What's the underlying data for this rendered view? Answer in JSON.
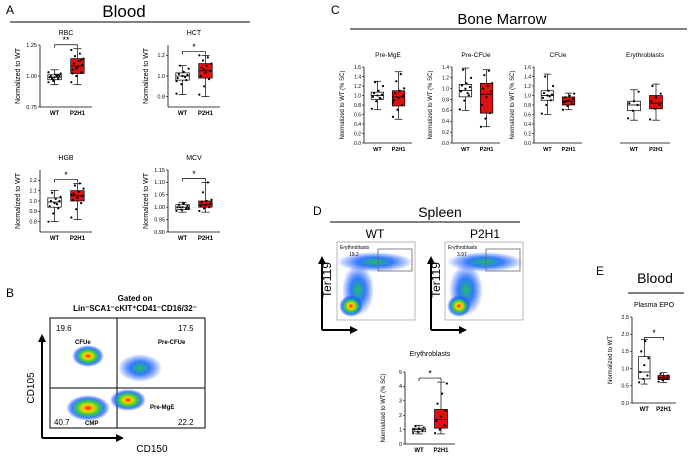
{
  "colors": {
    "wt_fill": "#ffffff",
    "p2h1_fill": "#e01010",
    "axis": "#000000",
    "dot": "#000000",
    "gate": "#7a7a7a"
  },
  "panels": {
    "A": {
      "letter": "A",
      "title": "Blood"
    },
    "B": {
      "letter": "B",
      "title_line1": "Gated on",
      "title_line2": "Lin⁻SCA1⁻cKIT⁺CD41⁻CD16/32⁻",
      "xlabel": "CD150",
      "ylabel": "CD105",
      "quadrants": {
        "tl_value": "19.6",
        "tl_label": "CFUe",
        "tr_value": "17.5",
        "tr_label": "Pre-CFUe",
        "bl_value": "40.7",
        "bl_label": "CMP",
        "br_value": "22.2",
        "br_label": "Pre-MgE"
      }
    },
    "C": {
      "letter": "C",
      "title": "Bone Marrow"
    },
    "D": {
      "letter": "D",
      "title": "Spleen",
      "left_label": "WT",
      "right_label": "P2H1",
      "ylabel": "Ter119",
      "gate_label": "Erythroblasts",
      "gate_wt": "19.2",
      "gate_p2h1": "3.97"
    },
    "E": {
      "letter": "E",
      "title": "Blood"
    }
  },
  "chart_data": [
    {
      "id": "rbc",
      "type": "box",
      "title": "RBC",
      "ylabel": "Normalized to WT",
      "categories": [
        "WT",
        "P2H1"
      ],
      "ylim": [
        0.75,
        1.25
      ],
      "yticks": [
        "0.75",
        "1.00",
        "1.25"
      ],
      "sig": "**",
      "series": [
        {
          "name": "WT",
          "min": 0.93,
          "q1": 0.97,
          "median": 0.99,
          "q3": 1.01,
          "max": 1.05,
          "points": [
            0.95,
            0.97,
            0.98,
            0.99,
            0.99,
            1.0,
            1.0,
            1.01,
            1.02,
            0.98,
            1.0,
            1.03,
            0.96,
            1.01
          ]
        },
        {
          "name": "P2H1",
          "min": 0.93,
          "q1": 1.02,
          "median": 1.08,
          "q3": 1.14,
          "max": 1.22,
          "points": [
            0.95,
            1.0,
            1.03,
            1.05,
            1.07,
            1.09,
            1.1,
            1.12,
            1.14,
            1.16,
            1.18,
            1.21,
            1.06,
            1.13,
            1.02
          ]
        }
      ]
    },
    {
      "id": "hct",
      "type": "box",
      "title": "HCT",
      "ylabel": "Normalized to WT",
      "categories": [
        "WT",
        "P2H1"
      ],
      "ylim": [
        0.7,
        1.3
      ],
      "yticks": [
        "0.8",
        "1.0",
        "1.2"
      ],
      "sig": "*",
      "series": [
        {
          "name": "WT",
          "min": 0.82,
          "q1": 0.96,
          "median": 1.0,
          "q3": 1.03,
          "max": 1.1,
          "points": [
            0.83,
            0.92,
            0.96,
            0.98,
            1.0,
            1.01,
            1.02,
            1.04,
            1.07,
            1.1,
            0.99,
            0.95
          ]
        },
        {
          "name": "P2H1",
          "min": 0.8,
          "q1": 0.98,
          "median": 1.05,
          "q3": 1.12,
          "max": 1.2,
          "points": [
            0.82,
            0.9,
            0.97,
            1.0,
            1.03,
            1.05,
            1.08,
            1.1,
            1.12,
            1.15,
            1.18,
            1.2,
            1.06
          ]
        }
      ]
    },
    {
      "id": "hgb",
      "type": "box",
      "title": "HGB",
      "ylabel": "Normalized to WT",
      "categories": [
        "WT",
        "P2H1"
      ],
      "ylim": [
        0.7,
        1.3
      ],
      "yticks": [
        "0.8",
        "0.9",
        "1.0",
        "1.1",
        "1.2"
      ],
      "sig": "*",
      "series": [
        {
          "name": "WT",
          "min": 0.8,
          "q1": 0.94,
          "median": 0.99,
          "q3": 1.03,
          "max": 1.1,
          "points": [
            0.8,
            0.88,
            0.93,
            0.95,
            0.98,
            1.0,
            1.0,
            1.02,
            1.04,
            1.08,
            0.97
          ]
        },
        {
          "name": "P2H1",
          "min": 0.82,
          "q1": 1.0,
          "median": 1.05,
          "q3": 1.1,
          "max": 1.17,
          "points": [
            0.84,
            0.92,
            0.98,
            1.01,
            1.03,
            1.05,
            1.07,
            1.09,
            1.12,
            1.15,
            1.17,
            1.06
          ]
        }
      ]
    },
    {
      "id": "mcv",
      "type": "box",
      "title": "MCV",
      "ylabel": "Normalized to WT",
      "categories": [
        "WT",
        "P2H1"
      ],
      "ylim": [
        0.9,
        1.15
      ],
      "yticks": [
        "0.90",
        "0.95",
        "1.00",
        "1.05",
        "1.10",
        "1.15"
      ],
      "sig": "*",
      "series": [
        {
          "name": "WT",
          "min": 0.98,
          "q1": 0.99,
          "median": 1.0,
          "q3": 1.01,
          "max": 1.02,
          "points": [
            0.985,
            0.99,
            0.995,
            1.0,
            1.0,
            1.005,
            1.01,
            1.015,
            0.995,
            1.0
          ]
        },
        {
          "name": "P2H1",
          "min": 0.98,
          "q1": 1.0,
          "median": 1.01,
          "q3": 1.025,
          "max": 1.1,
          "points": [
            0.985,
            0.995,
            1.0,
            1.005,
            1.01,
            1.015,
            1.02,
            1.025,
            1.03,
            1.06,
            1.1
          ]
        }
      ]
    },
    {
      "id": "premge",
      "type": "box",
      "title": "Pre-MgE",
      "ylabel": "Normalized to WT (% SC)",
      "categories": [
        "WT",
        "P2H1"
      ],
      "ylim": [
        0,
        1.6
      ],
      "yticks": [
        "0.0",
        "0.2",
        "0.4",
        "0.6",
        "0.8",
        "1.0",
        "1.2",
        "1.4",
        "1.6"
      ],
      "series": [
        {
          "name": "WT",
          "min": 0.7,
          "q1": 0.92,
          "median": 1.0,
          "q3": 1.07,
          "max": 1.3,
          "points": [
            0.72,
            0.88,
            0.93,
            0.97,
            1.0,
            1.02,
            1.05,
            1.1,
            1.2,
            1.28,
            0.95
          ]
        },
        {
          "name": "P2H1",
          "min": 0.5,
          "q1": 0.78,
          "median": 0.97,
          "q3": 1.1,
          "max": 1.5,
          "points": [
            0.55,
            0.7,
            0.8,
            0.9,
            0.95,
            1.0,
            1.05,
            1.1,
            1.15,
            1.3,
            1.45,
            0.85
          ]
        }
      ]
    },
    {
      "id": "precfue",
      "type": "box",
      "title": "Pre-CFUe",
      "ylabel": "Normalized to WT (% SC)",
      "categories": [
        "WT",
        "P2H1"
      ],
      "ylim": [
        0,
        1.4
      ],
      "yticks": [
        "0.0",
        "0.2",
        "0.4",
        "0.6",
        "0.8",
        "1.0",
        "1.2",
        "1.4"
      ],
      "series": [
        {
          "name": "WT",
          "min": 0.6,
          "q1": 0.85,
          "median": 0.97,
          "q3": 1.08,
          "max": 1.38,
          "points": [
            0.62,
            0.78,
            0.88,
            0.95,
            1.0,
            1.03,
            1.06,
            1.1,
            1.2,
            1.35,
            0.92
          ]
        },
        {
          "name": "P2H1",
          "min": 0.3,
          "q1": 0.55,
          "median": 0.9,
          "q3": 1.1,
          "max": 1.35,
          "points": [
            0.3,
            0.45,
            0.55,
            0.7,
            0.85,
            0.95,
            1.0,
            1.05,
            1.1,
            1.25,
            1.33
          ]
        }
      ]
    },
    {
      "id": "cfue",
      "type": "box",
      "title": "CFUe",
      "ylabel": "Normalized to WT (% SC)",
      "categories": [
        "WT",
        "P2H1"
      ],
      "ylim": [
        0,
        1.6
      ],
      "yticks": [
        "0.0",
        "0.2",
        "0.4",
        "0.6",
        "0.8",
        "1.0",
        "1.2",
        "1.4",
        "1.6"
      ],
      "series": [
        {
          "name": "WT",
          "min": 0.6,
          "q1": 0.9,
          "median": 1.0,
          "q3": 1.1,
          "max": 1.45,
          "points": [
            0.62,
            0.8,
            0.9,
            0.95,
            1.0,
            1.02,
            1.05,
            1.1,
            1.2,
            1.4,
            0.98
          ]
        },
        {
          "name": "P2H1",
          "min": 0.7,
          "q1": 0.8,
          "median": 0.88,
          "q3": 0.97,
          "max": 1.05,
          "points": [
            0.7,
            0.78,
            0.82,
            0.86,
            0.9,
            0.93,
            0.96,
            1.0,
            1.04,
            0.88
          ]
        }
      ]
    },
    {
      "id": "erythro_bm",
      "type": "box",
      "title": "Erythroblasts",
      "ylabel": "",
      "categories": [
        "WT",
        "P2H1"
      ],
      "ylim": [
        0,
        2.0
      ],
      "yticks": [],
      "series": [
        {
          "name": "WT",
          "min": 0.6,
          "q1": 0.85,
          "median": 1.0,
          "q3": 1.1,
          "max": 1.4,
          "points": [
            0.65,
            0.85,
            1.0,
            1.05,
            1.1,
            1.35
          ]
        },
        {
          "name": "P2H1",
          "min": 0.6,
          "q1": 0.9,
          "median": 1.05,
          "q3": 1.25,
          "max": 1.55,
          "points": [
            0.62,
            0.9,
            1.0,
            1.1,
            1.2,
            1.3,
            1.5
          ]
        }
      ]
    },
    {
      "id": "erythro_spleen",
      "type": "box",
      "title": "Erythroblasts",
      "ylabel": "Normalized to WT (% SC)",
      "categories": [
        "WT",
        "P2H1"
      ],
      "ylim": [
        0,
        5
      ],
      "yticks": [
        "0",
        "1",
        "2",
        "3",
        "4",
        "5"
      ],
      "sig": "*",
      "series": [
        {
          "name": "WT",
          "min": 0.7,
          "q1": 0.85,
          "median": 1.0,
          "q3": 1.1,
          "max": 1.3,
          "points": [
            0.75,
            0.85,
            0.95,
            1.0,
            1.05,
            1.15,
            1.25
          ]
        },
        {
          "name": "P2H1",
          "min": 0.7,
          "q1": 1.1,
          "median": 1.7,
          "q3": 2.4,
          "max": 4.3,
          "points": [
            0.75,
            1.0,
            1.3,
            1.6,
            1.9,
            2.3,
            2.8,
            3.5,
            4.2
          ]
        }
      ]
    },
    {
      "id": "plasma_epo",
      "type": "box",
      "title": "Plasma EPO",
      "ylabel": "Normalized to WT",
      "categories": [
        "WT",
        "P2H1"
      ],
      "ylim": [
        0,
        2.5
      ],
      "yticks": [
        "0.0",
        "0.5",
        "1.0",
        "1.5",
        "2.0",
        "2.5"
      ],
      "sig": "*",
      "series": [
        {
          "name": "WT",
          "min": 0.55,
          "q1": 0.7,
          "median": 0.9,
          "q3": 1.35,
          "max": 1.85,
          "points": [
            0.6,
            0.7,
            0.8,
            0.9,
            1.1,
            1.3,
            1.5,
            1.8
          ]
        },
        {
          "name": "P2H1",
          "min": 0.6,
          "q1": 0.68,
          "median": 0.73,
          "q3": 0.8,
          "max": 0.88,
          "points": [
            0.62,
            0.67,
            0.7,
            0.73,
            0.76,
            0.8,
            0.85
          ]
        }
      ]
    }
  ]
}
